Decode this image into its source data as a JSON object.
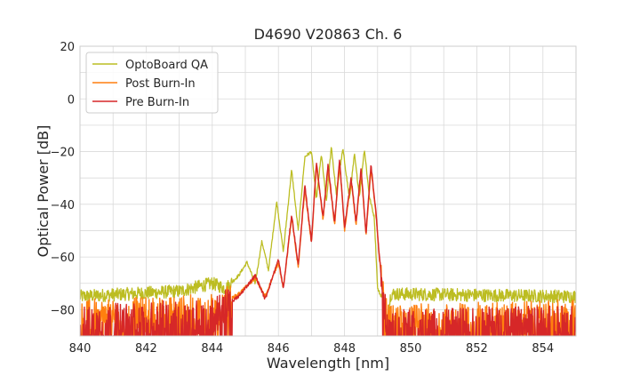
{
  "chart_data": {
    "type": "line",
    "title": "D4690 V20863 Ch. 6",
    "xlabel": "Wavelength [nm]",
    "ylabel": "Optical Power [dB]",
    "xlim": [
      840,
      855
    ],
    "ylim": [
      -90,
      20
    ],
    "xticks": [
      840,
      842,
      844,
      846,
      848,
      850,
      852,
      854
    ],
    "yticks": [
      20,
      0,
      -20,
      -40,
      -60,
      -80
    ],
    "xtick_labels": [
      "840",
      "842",
      "844",
      "846",
      "848",
      "850",
      "852",
      "854"
    ],
    "ytick_labels": [
      "20",
      "0",
      "−20",
      "−40",
      "−60",
      "−80"
    ],
    "grid": true,
    "legend_position": "top-left",
    "noise_floor_note_free": true,
    "series": [
      {
        "name": "OptoBoard QA",
        "color": "#bcbd22",
        "x": [
          840.0,
          843.0,
          844.0,
          844.4,
          844.8,
          845.05,
          845.3,
          845.5,
          845.7,
          845.95,
          846.15,
          846.4,
          846.6,
          846.8,
          847.0,
          847.15,
          847.3,
          847.45,
          847.6,
          847.75,
          847.95,
          848.15,
          848.3,
          848.45,
          848.6,
          848.75,
          848.9,
          849.0,
          849.15,
          849.25,
          849.4,
          855.0
        ],
        "y": [
          -75,
          -73,
          -70,
          -72,
          -67,
          -62,
          -70,
          -54,
          -65,
          -39,
          -58,
          -27,
          -50,
          -22,
          -20,
          -38,
          -21,
          -39,
          -18,
          -36,
          -19,
          -38,
          -21,
          -37,
          -19,
          -37,
          -45,
          -72,
          -76,
          -88,
          -74,
          -75
        ]
      },
      {
        "name": "Post Burn-In",
        "color": "#ff7f0e",
        "x": [
          840.0,
          844.0,
          844.8,
          845.3,
          845.6,
          846.0,
          846.15,
          846.4,
          846.6,
          846.8,
          847.0,
          847.15,
          847.35,
          847.5,
          847.7,
          847.85,
          848.0,
          848.2,
          848.35,
          848.5,
          848.65,
          848.8,
          848.95,
          849.05,
          849.2,
          849.3,
          855.0
        ],
        "y": [
          -82,
          -80,
          -74,
          -68,
          -75,
          -62,
          -72,
          -45,
          -64,
          -34,
          -55,
          -25,
          -46,
          -26,
          -48,
          -24,
          -50,
          -31,
          -48,
          -27,
          -52,
          -26,
          -44,
          -60,
          -77,
          -84,
          -82
        ]
      },
      {
        "name": "Pre Burn-In",
        "color": "#d62728",
        "x": [
          840.0,
          844.0,
          844.8,
          845.3,
          845.6,
          846.0,
          846.15,
          846.4,
          846.6,
          846.8,
          847.0,
          847.15,
          847.35,
          847.5,
          847.7,
          847.85,
          848.0,
          848.2,
          848.35,
          848.5,
          848.65,
          848.8,
          848.95,
          849.05,
          849.2,
          849.3,
          855.0
        ],
        "y": [
          -84,
          -82,
          -75,
          -67,
          -76,
          -61,
          -72,
          -44,
          -63,
          -33,
          -54,
          -24,
          -45,
          -25,
          -47,
          -23,
          -49,
          -30,
          -47,
          -26,
          -51,
          -25,
          -43,
          -59,
          -78,
          -86,
          -84
        ]
      }
    ]
  }
}
